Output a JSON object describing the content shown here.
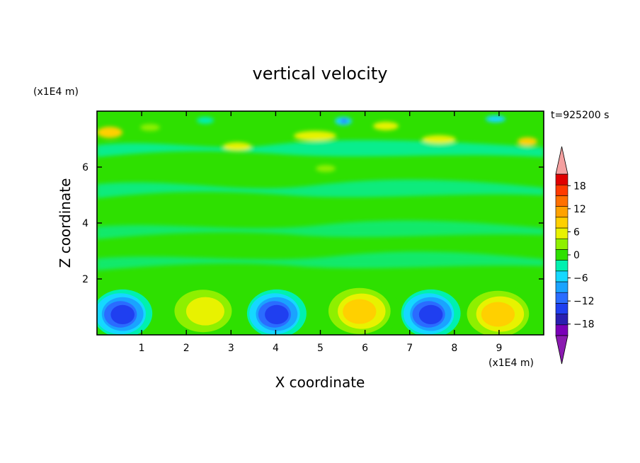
{
  "chart_data": {
    "type": "heatmap",
    "title": "vertical velocity",
    "xlabel": "X coordinate",
    "ylabel": "Z coordinate",
    "x_unit": "(x1E4 m)",
    "y_unit": "(x1E4 m)",
    "time_label": "t=925200 s",
    "xlim": [
      0,
      10
    ],
    "ylim": [
      0,
      8
    ],
    "x_ticks": [
      "1",
      "2",
      "3",
      "4",
      "5",
      "6",
      "7",
      "8",
      "9"
    ],
    "y_ticks": [
      "2",
      "4",
      "6"
    ],
    "colorbar": {
      "tick_labels": [
        "18",
        "12",
        "6",
        "0",
        "-6",
        "-12",
        "-18"
      ],
      "levels": [
        -21,
        -18,
        -15,
        -12,
        -9,
        -6,
        -3,
        0,
        3,
        6,
        9,
        12,
        15,
        18,
        21
      ],
      "colors": [
        "#7a00b8",
        "#2a1fb0",
        "#1f3ff0",
        "#2a6cff",
        "#1aa3ff",
        "#15d8ff",
        "#00f0b0",
        "#2ee000",
        "#8ef000",
        "#e8f200",
        "#ffd000",
        "#ffa200",
        "#ff7000",
        "#ff3a00",
        "#e00000"
      ],
      "over_color": "#f4a0a0",
      "under_color": "#8a1ab0"
    },
    "features": [
      {
        "kind": "downdraft",
        "x": 0.55,
        "z": 0.8,
        "w": -15
      },
      {
        "kind": "updraft",
        "x": 2.4,
        "z": 0.9,
        "w": 9
      },
      {
        "kind": "downdraft",
        "x": 4.0,
        "z": 0.8,
        "w": -15
      },
      {
        "kind": "updraft",
        "x": 5.9,
        "z": 0.9,
        "w": 11
      },
      {
        "kind": "downdraft",
        "x": 7.45,
        "z": 0.8,
        "w": -15
      },
      {
        "kind": "updraft",
        "x": 9.0,
        "z": 0.8,
        "w": 11
      }
    ]
  }
}
